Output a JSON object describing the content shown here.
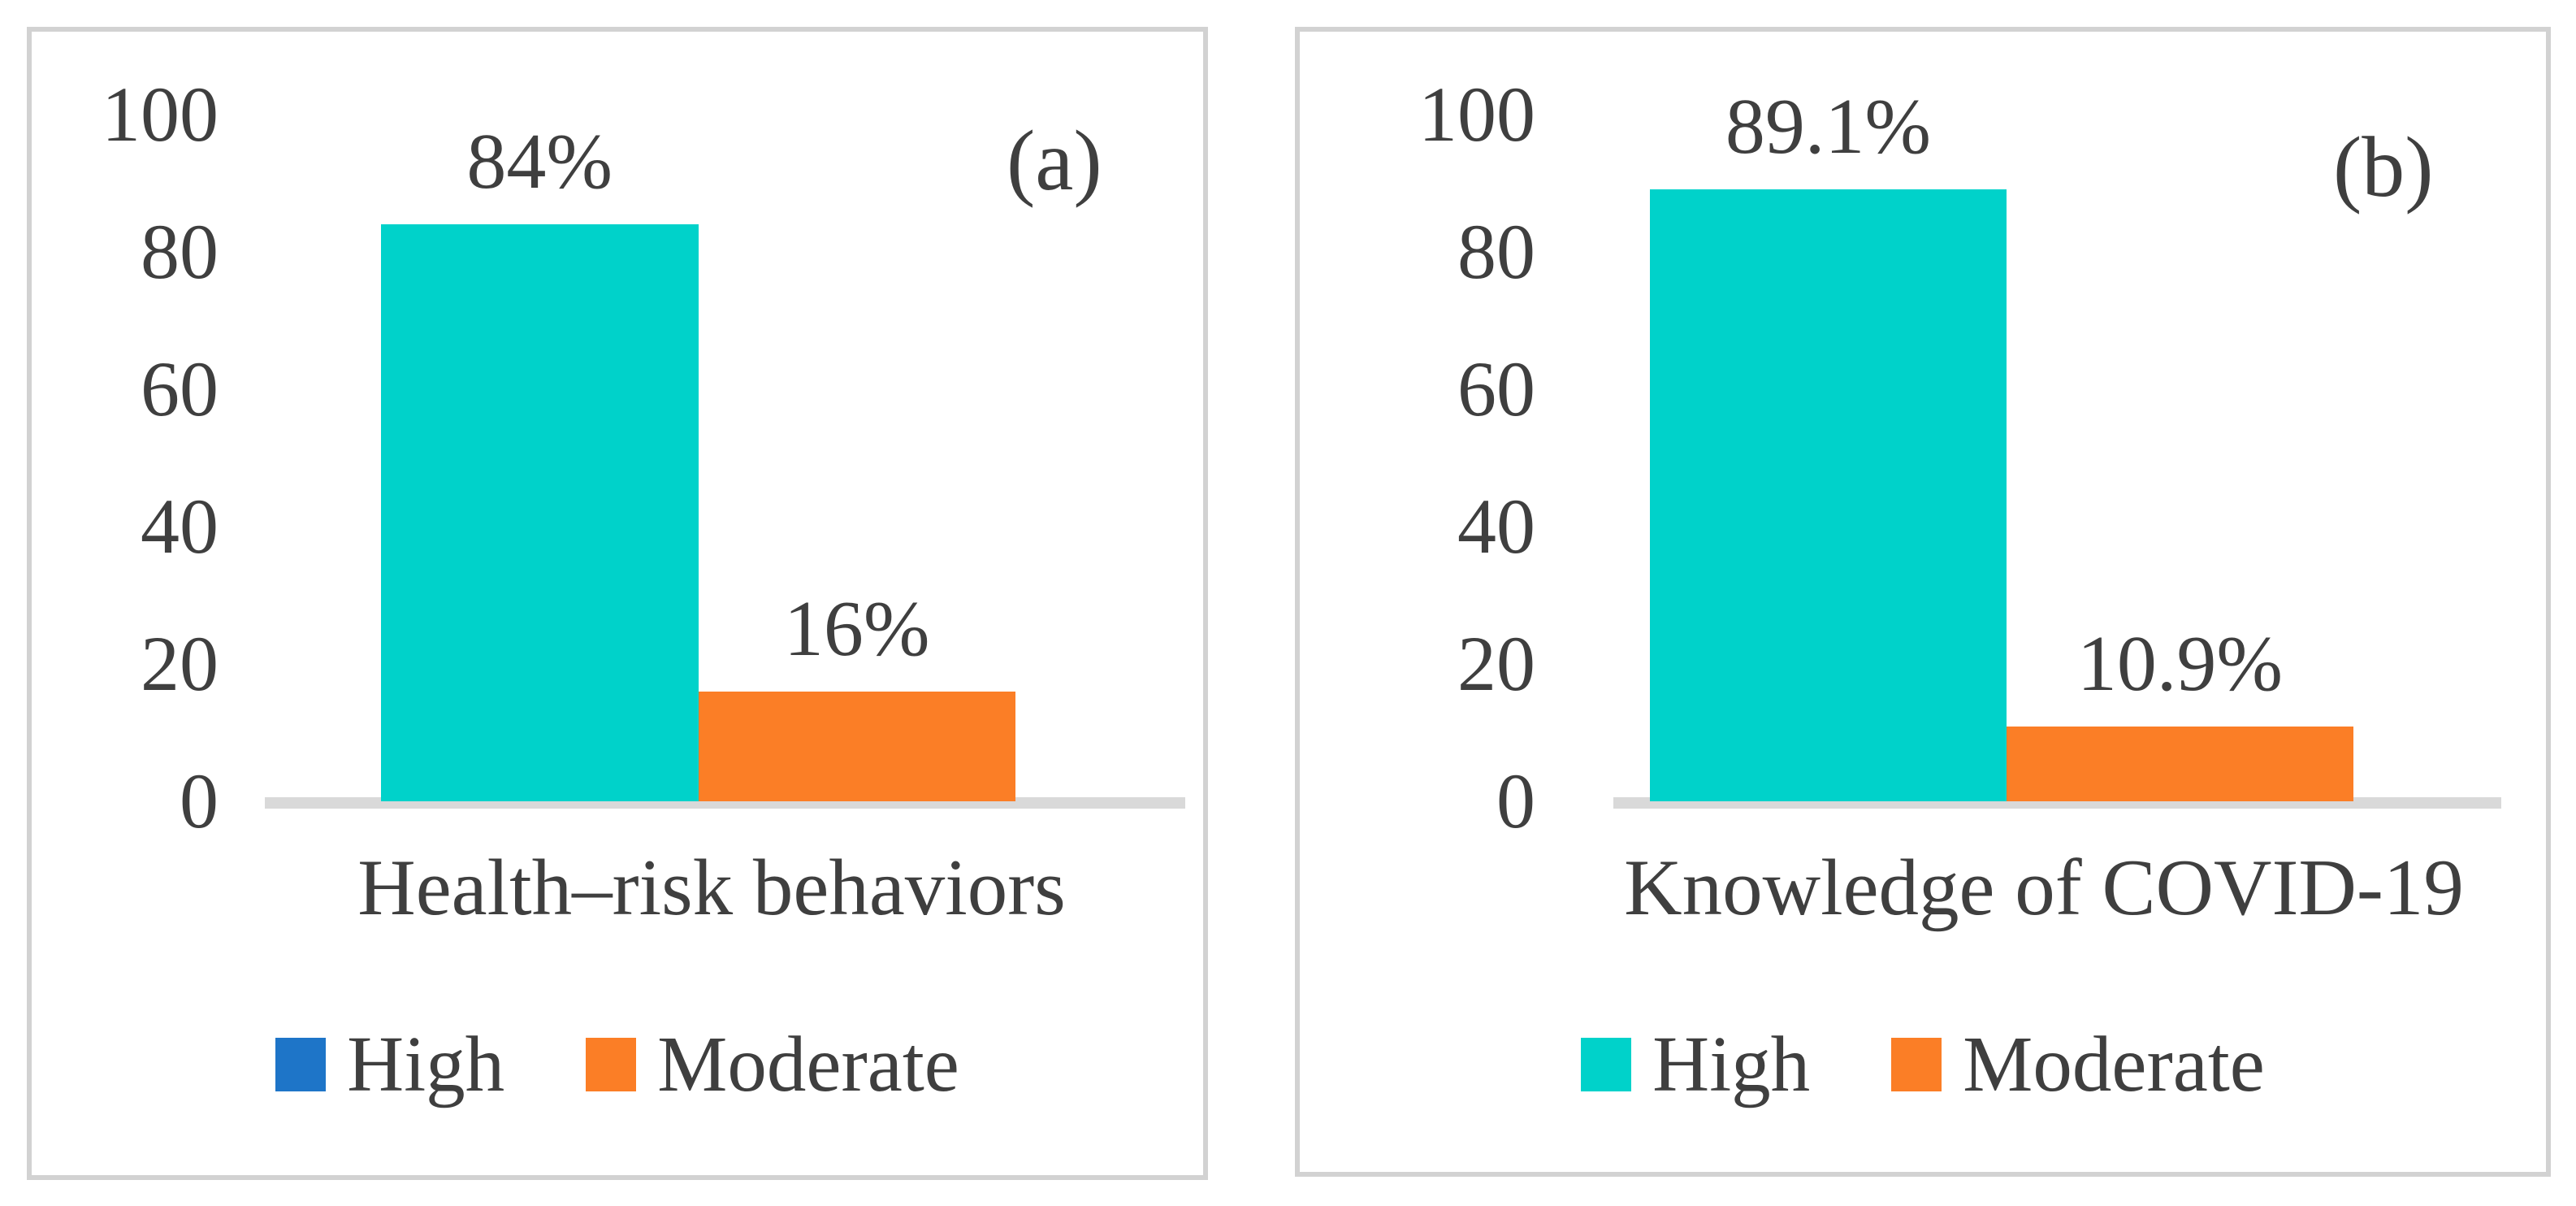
{
  "figure": {
    "text_color": "#3F3F3F",
    "panel_border_color": "#D2D2D2",
    "axis_line_color": "#D9D9D9",
    "background": "#FFFFFF"
  },
  "chart_data": [
    {
      "type": "bar",
      "panel_label": "(a)",
      "title": "Health–risk behaviors",
      "categories": [
        "High",
        "Moderate"
      ],
      "values": [
        84,
        16
      ],
      "value_labels": [
        "84%",
        "16%"
      ],
      "bar_colors": [
        "#00D2CA",
        "#FB7E26"
      ],
      "legend": [
        {
          "label": "High",
          "color": "#1E75C8"
        },
        {
          "label": "Moderate",
          "color": "#FB7E26"
        }
      ],
      "ylim": [
        0,
        100
      ],
      "yticks": [
        100,
        80,
        60,
        40,
        20,
        0
      ],
      "grid": false,
      "legend_position": "bottom"
    },
    {
      "type": "bar",
      "panel_label": "(b)",
      "title": "Knowledge of COVID-19",
      "categories": [
        "High",
        "Moderate"
      ],
      "values": [
        89.1,
        10.9
      ],
      "value_labels": [
        "89.1%",
        "10.9%"
      ],
      "bar_colors": [
        "#00D2CA",
        "#FB7E26"
      ],
      "legend": [
        {
          "label": "High",
          "color": "#00D2CA"
        },
        {
          "label": "Moderate",
          "color": "#FB7E26"
        }
      ],
      "ylim": [
        0,
        100
      ],
      "yticks": [
        100,
        80,
        60,
        40,
        20,
        0
      ],
      "grid": false,
      "legend_position": "bottom"
    }
  ]
}
